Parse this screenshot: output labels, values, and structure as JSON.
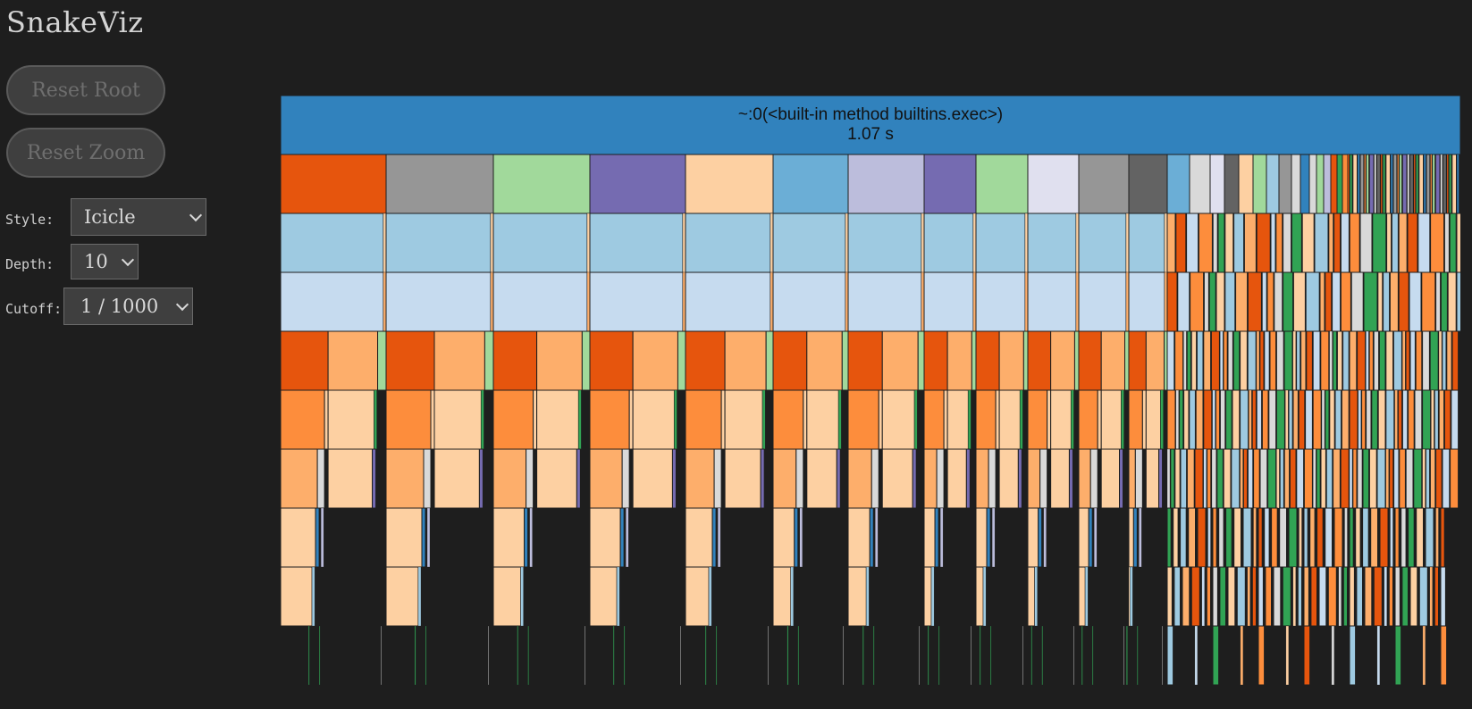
{
  "app": {
    "title": "SnakeViz"
  },
  "buttons": {
    "reset_root": "Reset Root",
    "reset_zoom": "Reset Zoom"
  },
  "controls": {
    "style": {
      "label": "Style:",
      "value": "Icicle"
    },
    "depth": {
      "label": "Depth:",
      "value": "10"
    },
    "cutoff": {
      "label": "Cutoff:",
      "value": "1 / 1000"
    }
  },
  "chart": {
    "root": {
      "name": "~:0(<built-in method builtins.exec>)",
      "time": "1.07 s",
      "color": "#3182bd"
    },
    "total_time_s": 1.07,
    "depth": 10,
    "palette": [
      "#e6550d",
      "#969696",
      "#a1d99b",
      "#756bb1",
      "#fdd0a2",
      "#6baed6",
      "#bcbddc",
      "#e0e0ef",
      "#636363",
      "#fd8d3c",
      "#fdae6b",
      "#9ecae1",
      "#c6dbef",
      "#31a354",
      "#d9d9d9",
      "#3182bd"
    ]
  }
}
